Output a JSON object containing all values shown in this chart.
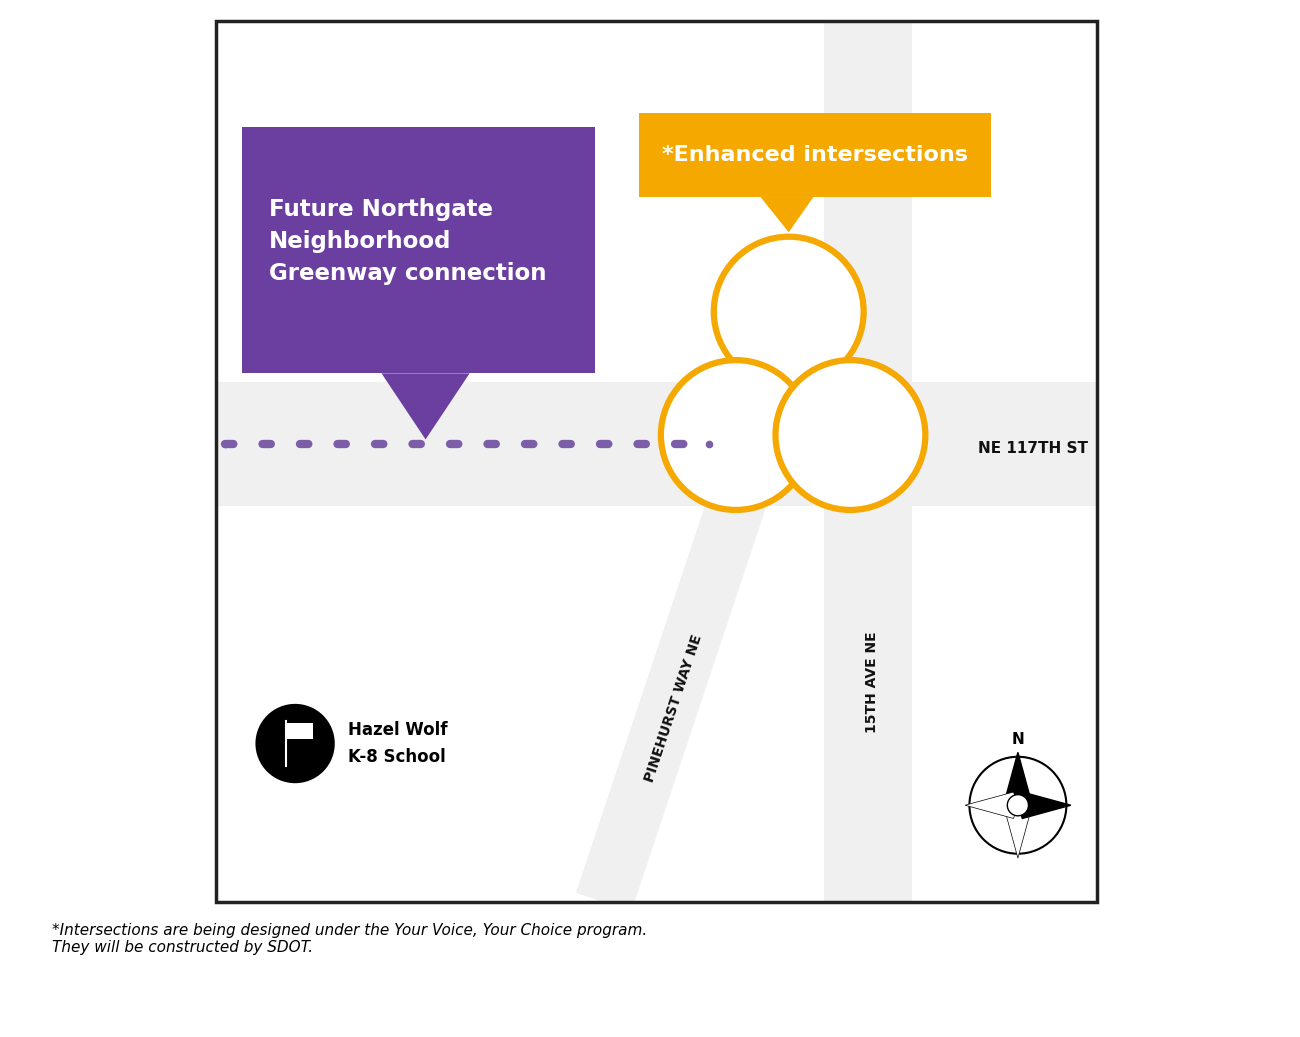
{
  "map_bg": "#d3d3d3",
  "road_color": "#f0f0f0",
  "border_color": "#222222",
  "orange_color": "#f5a800",
  "purple_color": "#6b3fa0",
  "dot_color": "#7b5ea7",
  "white": "#ffffff",
  "black": "#111111",
  "enhanced_label": "*Enhanced intersections",
  "greenway_label": "Future Northgate\nNeighborhood\nGreenway connection",
  "ne117_label": "NE 117TH ST",
  "pinehurst_label": "PINEHURST WAY NE",
  "ave15_label": "15TH AVE NE",
  "school_label1": "Hazel Wolf",
  "school_label2": "K-8 School",
  "footnote_line1": "*Intersections are being designed under the Your Voice, Your Choice program.",
  "footnote_line2": "They will be constructed by SDOT."
}
